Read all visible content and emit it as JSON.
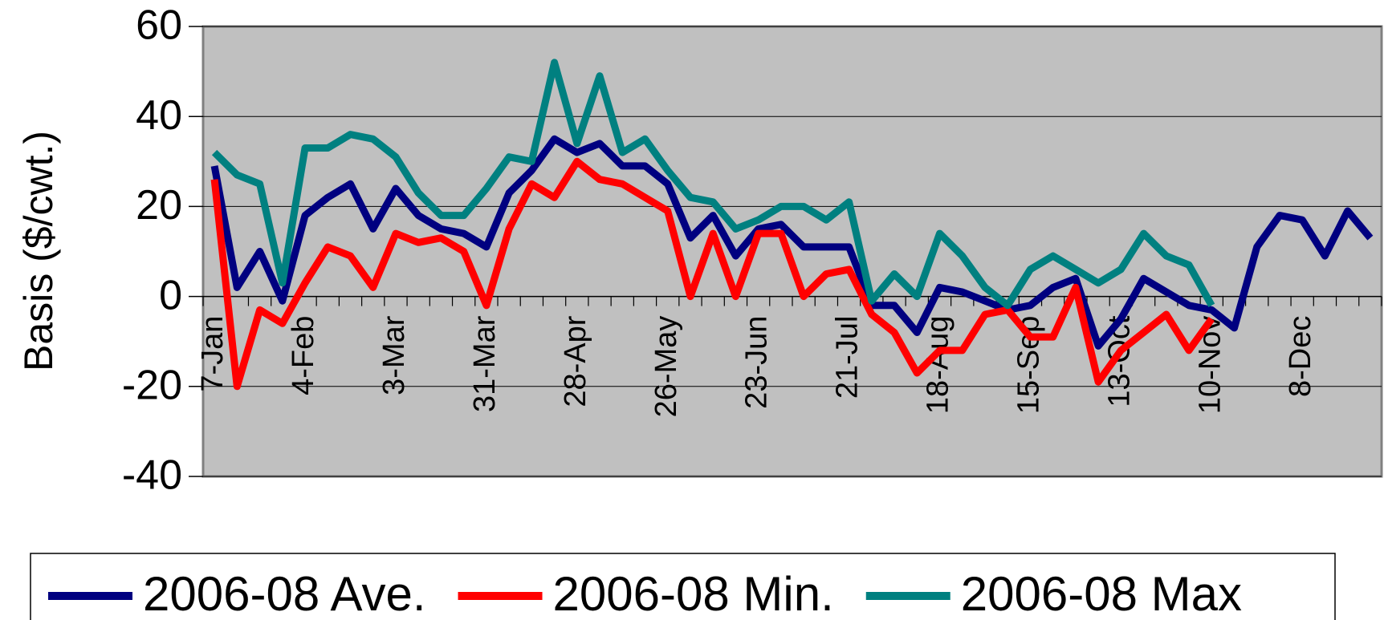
{
  "chart_data": {
    "type": "line",
    "y_label": "Basis ($/cwt.)",
    "categories": [
      "7-Jan",
      null,
      null,
      null,
      "4-Feb",
      null,
      null,
      null,
      "3-Mar",
      null,
      null,
      null,
      "31-Mar",
      null,
      null,
      null,
      "28-Apr",
      null,
      null,
      null,
      "26-May",
      null,
      null,
      null,
      "23-Jun",
      null,
      null,
      null,
      "21-Jul",
      null,
      null,
      null,
      "18-Aug",
      null,
      null,
      null,
      "15-Sep",
      null,
      null,
      null,
      "13-Oct",
      null,
      null,
      null,
      "10-Nov",
      null,
      null,
      null,
      "8-Dec",
      null,
      null,
      null
    ],
    "series": [
      {
        "name": "2006-08 Ave.",
        "color": "#000080",
        "values": [
          29,
          2,
          10,
          -1,
          18,
          22,
          25,
          15,
          24,
          18,
          15,
          14,
          11,
          23,
          28,
          35,
          32,
          34,
          29,
          29,
          25,
          13,
          18,
          9,
          15,
          16,
          11,
          11,
          11,
          -2,
          -2,
          -8,
          2,
          1,
          -1,
          -3,
          -2,
          2,
          4,
          -11,
          -5,
          4,
          1,
          -2,
          -3,
          -7,
          11,
          18,
          17,
          9,
          19,
          13
        ]
      },
      {
        "name": "2006-08 Min.",
        "color": "#ff0000",
        "values": [
          26,
          -20,
          -3,
          -6,
          3,
          11,
          9,
          2,
          14,
          12,
          13,
          10,
          -2,
          15,
          25,
          22,
          30,
          26,
          25,
          22,
          19,
          0,
          14,
          0,
          14,
          14,
          0,
          5,
          6,
          -4,
          -8,
          -17,
          -12,
          -12,
          -4,
          -3,
          -9,
          -9,
          2,
          -19,
          -12,
          -8,
          -4,
          -12,
          -5,
          null,
          null,
          null,
          null,
          null,
          null,
          null
        ]
      },
      {
        "name": "2006-08 Max",
        "color": "#008080",
        "values": [
          32,
          27,
          25,
          3,
          33,
          33,
          36,
          35,
          31,
          23,
          18,
          18,
          24,
          31,
          30,
          52,
          34,
          49,
          32,
          35,
          28,
          22,
          21,
          15,
          17,
          20,
          20,
          17,
          21,
          -1,
          5,
          0,
          14,
          9,
          2,
          -2,
          6,
          9,
          6,
          3,
          6,
          14,
          9,
          7,
          -2,
          null,
          null,
          null,
          null,
          null,
          null,
          null
        ]
      }
    ],
    "ylim": [
      -40,
      60
    ],
    "yticks": [
      -40,
      -20,
      0,
      20,
      40,
      60
    ],
    "grid": true,
    "plot_color": "#c0c0c0",
    "legend": "bottom"
  }
}
